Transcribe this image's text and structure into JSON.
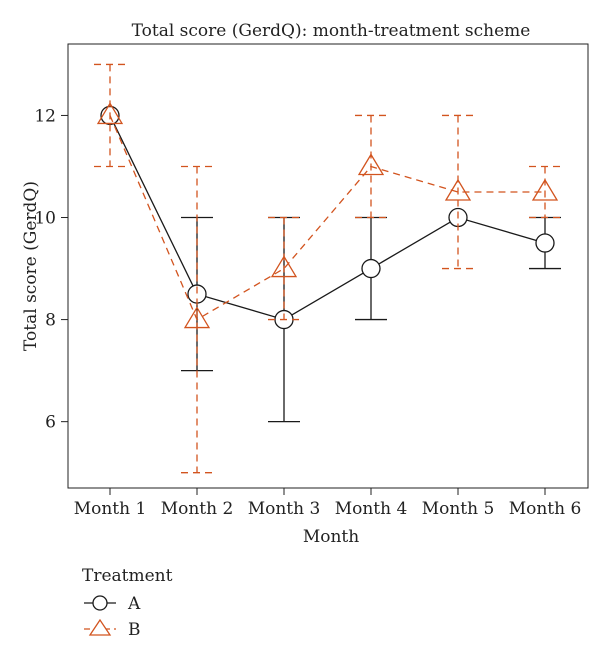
{
  "chart_data": {
    "type": "line",
    "title": "Total score (GerdQ): month-treatment scheme",
    "xlabel": "Month",
    "ylabel": "Total score (GerdQ)",
    "categories": [
      "Month 1",
      "Month 2",
      "Month 3",
      "Month 4",
      "Month 5",
      "Month 6"
    ],
    "yticks": [
      6,
      8,
      10,
      12
    ],
    "ylim": [
      4.7,
      13.4
    ],
    "grid": false,
    "legend": {
      "title": "Treatment",
      "position": "bottom-left"
    },
    "series": [
      {
        "name": "A",
        "color": "#1a1a1a",
        "marker": "circle",
        "line_style": "solid",
        "values": [
          12,
          8.5,
          8,
          9,
          10,
          9.5
        ],
        "lower": [
          12,
          7,
          6,
          8,
          10,
          9
        ],
        "upper": [
          12,
          10,
          10,
          10,
          10,
          10
        ]
      },
      {
        "name": "B",
        "color": "#d2541f",
        "marker": "triangle",
        "line_style": "dashed",
        "values": [
          12,
          8,
          9,
          11,
          10.5,
          10.5
        ],
        "lower": [
          11,
          5,
          8,
          10,
          9,
          10
        ],
        "upper": [
          13,
          11,
          10,
          12,
          12,
          11
        ]
      }
    ]
  }
}
